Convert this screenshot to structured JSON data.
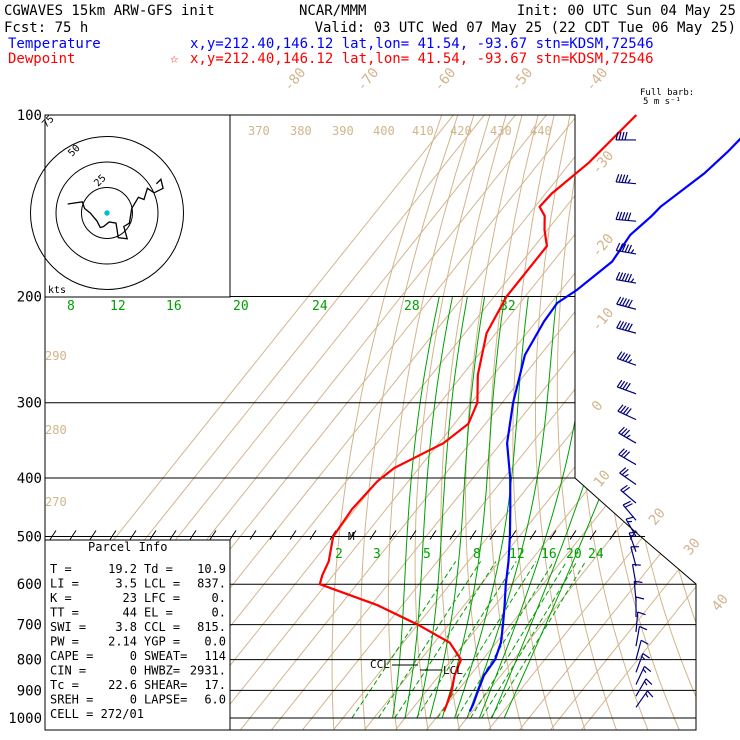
{
  "header": {
    "line1_left": "CGWAVES 15km ARW-GFS init",
    "line1_mid": "NCAR/MMM",
    "line1_right": "Init: 00 UTC Sun 04 May 25",
    "line2_left": "Fcst:   75 h",
    "line2_right": "Valid: 03 UTC Wed 07 May 25 (22 CDT Tue 06 May 25)",
    "temp_label": "Temperature",
    "temp_loc": "x,y=212.40,146.12    lat,lon= 41.54, -93.67   stn=KDSM,72546",
    "dew_label": "Dewpoint",
    "dew_star": "☆",
    "dew_loc": "x,y=212.40,146.12    lat,lon= 41.54, -93.67   stn=KDSM,72546"
  },
  "barb_legend": {
    "line1": "Full barb:",
    "line2": "5 m s⁻¹"
  },
  "hodograph": {
    "units": "kts",
    "rings": [
      "25",
      "50",
      "75"
    ]
  },
  "parcel_info": {
    "title": "Parcel Info",
    "rows": [
      [
        "T   =",
        "19.2",
        "Td =",
        "10.9"
      ],
      [
        "LI  =",
        "3.5",
        "LCL =",
        "837."
      ],
      [
        "K   =",
        "23",
        "LFC =",
        "0."
      ],
      [
        "TT  =",
        "44",
        "EL  =",
        "0."
      ],
      [
        "SWI =",
        "3.8",
        "CCL =",
        "815."
      ],
      [
        "PW  =",
        "2.14",
        "YGP =",
        "0.0"
      ],
      [
        "CAPE =",
        "0",
        "SWEAT=",
        "114"
      ],
      [
        "CIN  =",
        "0",
        "HWBZ=",
        "2931."
      ],
      [
        "Tc  =",
        "22.6",
        "SHEAR=",
        "17."
      ],
      [
        "SREH =",
        "0",
        "LAPSE=",
        "6.0"
      ],
      [
        "CELL = 272/01",
        "",
        "",
        ""
      ]
    ]
  },
  "annotations": {
    "ccl": "CCL",
    "lcl": "LCL",
    "m": "M"
  },
  "chart_data": {
    "type": "line",
    "title": "",
    "xlabel": "",
    "ylabel": "",
    "y_scale": "log-pressure",
    "ylim": [
      1000,
      100
    ],
    "pressure_ticks": [
      "100",
      "200",
      "300",
      "400",
      "500",
      "600",
      "700",
      "800",
      "900",
      "1000"
    ],
    "isotherm_labels": [
      "-80",
      "-70",
      "-60",
      "-50",
      "-40",
      "-30",
      "-20",
      "-10",
      "0",
      "10",
      "20",
      "30",
      "40"
    ],
    "dry_adiabat_labels": [
      "370",
      "380",
      "390",
      "400",
      "410",
      "420",
      "430",
      "440",
      "290",
      "280",
      "270"
    ],
    "moist_adiabat_labels_upper": [
      "8",
      "12",
      "16",
      "20",
      "24",
      "28",
      "32"
    ],
    "mixing_ratio_labels": [
      "2",
      "3",
      "5",
      "8",
      "12",
      "16",
      "20",
      "24"
    ],
    "colors": {
      "temperature": "#0000ff",
      "dewpoint": "#ff0000",
      "isotherm": "#d2b48c",
      "moist": "#00a000",
      "frame": "#000000"
    },
    "series": [
      {
        "name": "Temperature",
        "points": [
          [
            100,
            -40.0
          ],
          [
            115,
            -42.0
          ],
          [
            125,
            -44.0
          ],
          [
            142,
            -49.5
          ],
          [
            147,
            -50.0
          ],
          [
            158,
            -52.0
          ],
          [
            175,
            -51.0
          ],
          [
            195,
            -55.0
          ],
          [
            205,
            -58.0
          ],
          [
            220,
            -57.5
          ],
          [
            250,
            -55.0
          ],
          [
            300,
            -46.5
          ],
          [
            350,
            -38.0
          ],
          [
            400,
            -28.0
          ],
          [
            450,
            -20.0
          ],
          [
            500,
            -13.0
          ],
          [
            550,
            -7.0
          ],
          [
            600,
            -2.0
          ],
          [
            650,
            3.0
          ],
          [
            700,
            7.5
          ],
          [
            750,
            11.5
          ],
          [
            800,
            14.0
          ],
          [
            850,
            14.5
          ],
          [
            900,
            16.5
          ],
          [
            950,
            18.5
          ],
          [
            975,
            19.2
          ]
        ]
      },
      {
        "name": "Dewpoint",
        "points": [
          [
            100,
            -81.0
          ],
          [
            120,
            -84.0
          ],
          [
            135,
            -88.0
          ],
          [
            142,
            -88.5
          ],
          [
            147,
            -84.5
          ],
          [
            155,
            -81.0
          ],
          [
            165,
            -76.0
          ],
          [
            200,
            -76.0
          ],
          [
            230,
            -73.0
          ],
          [
            270,
            -65.0
          ],
          [
            300,
            -58.0
          ],
          [
            325,
            -55.5
          ],
          [
            350,
            -58.5
          ],
          [
            385,
            -68.0
          ],
          [
            405,
            -70.0
          ],
          [
            450,
            -71.0
          ],
          [
            500,
            -70.0
          ],
          [
            550,
            -65.0
          ],
          [
            580,
            -63.5
          ],
          [
            600,
            -62.0
          ],
          [
            650,
            -38.0
          ],
          [
            700,
            -20.0
          ],
          [
            750,
            -5.0
          ],
          [
            800,
            3.0
          ],
          [
            850,
            5.0
          ],
          [
            900,
            8.0
          ],
          [
            950,
            10.0
          ],
          [
            975,
            10.9
          ]
        ]
      }
    ],
    "hodograph_trace": [
      [
        -35,
        8
      ],
      [
        -22,
        10
      ],
      [
        -20,
        4
      ],
      [
        -15,
        0
      ],
      [
        -9,
        -7
      ],
      [
        -6,
        -13
      ],
      [
        -3,
        -12
      ],
      [
        2,
        -8
      ],
      [
        8,
        -9
      ],
      [
        9,
        -15
      ],
      [
        10,
        -22
      ],
      [
        18,
        -23
      ],
      [
        15,
        -12
      ],
      [
        20,
        -9
      ],
      [
        22,
        4
      ],
      [
        28,
        14
      ],
      [
        33,
        12
      ],
      [
        36,
        22
      ],
      [
        42,
        18
      ],
      [
        50,
        22
      ],
      [
        48,
        30
      ],
      [
        44,
        26
      ]
    ],
    "wind_barbs": [
      [
        110,
        270,
        40
      ],
      [
        130,
        275,
        45
      ],
      [
        150,
        275,
        50
      ],
      [
        170,
        280,
        55
      ],
      [
        190,
        280,
        55
      ],
      [
        210,
        285,
        50
      ],
      [
        230,
        285,
        50
      ],
      [
        260,
        290,
        45
      ],
      [
        290,
        290,
        40
      ],
      [
        320,
        295,
        40
      ],
      [
        350,
        300,
        35
      ],
      [
        380,
        300,
        30
      ],
      [
        410,
        305,
        25
      ],
      [
        440,
        310,
        20
      ],
      [
        470,
        320,
        20
      ],
      [
        500,
        330,
        15
      ],
      [
        530,
        340,
        15
      ],
      [
        560,
        345,
        12
      ],
      [
        600,
        350,
        12
      ],
      [
        640,
        355,
        12
      ],
      [
        680,
        360,
        10
      ],
      [
        720,
        5,
        10
      ],
      [
        760,
        10,
        12
      ],
      [
        800,
        15,
        12
      ],
      [
        840,
        20,
        14
      ],
      [
        880,
        25,
        14
      ],
      [
        920,
        30,
        15
      ],
      [
        960,
        35,
        14
      ]
    ]
  }
}
